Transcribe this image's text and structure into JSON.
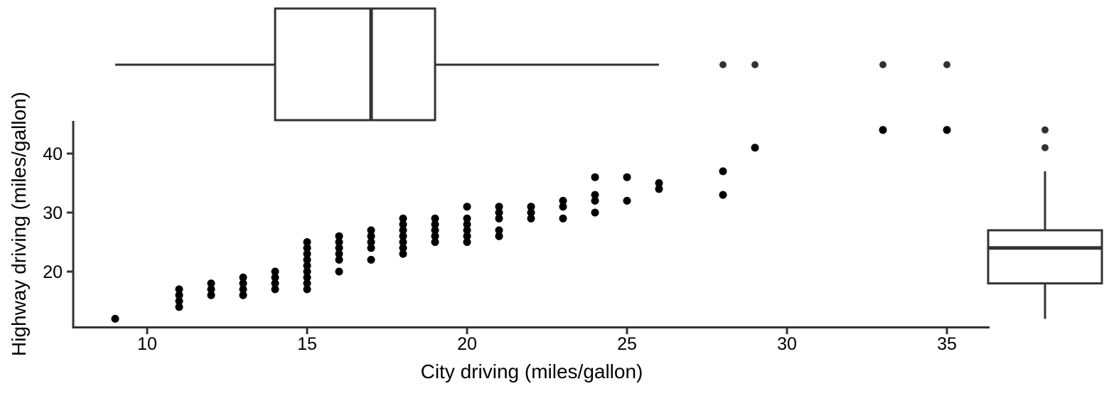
{
  "chart_data": {
    "type": "scatter",
    "title": "",
    "xlabel": "City driving (miles/gallon)",
    "ylabel": "Highway driving (miles/gallon)",
    "x_ticks": [
      10,
      15,
      20,
      25,
      30,
      35
    ],
    "y_ticks": [
      20,
      30,
      40
    ],
    "xlim": [
      7.7,
      36.3
    ],
    "ylim": [
      10.4,
      45.5
    ],
    "grid": false,
    "legend": "none",
    "marker": "filled-black-circle",
    "points": [
      [
        9,
        12
      ],
      [
        11,
        14
      ],
      [
        11,
        15
      ],
      [
        11,
        16
      ],
      [
        11,
        17
      ],
      [
        12,
        16
      ],
      [
        12,
        17
      ],
      [
        12,
        18
      ],
      [
        13,
        16
      ],
      [
        13,
        17
      ],
      [
        13,
        18
      ],
      [
        13,
        19
      ],
      [
        14,
        17
      ],
      [
        14,
        18
      ],
      [
        14,
        19
      ],
      [
        14,
        20
      ],
      [
        15,
        17
      ],
      [
        15,
        18
      ],
      [
        15,
        19
      ],
      [
        15,
        20
      ],
      [
        15,
        21
      ],
      [
        15,
        22
      ],
      [
        15,
        23
      ],
      [
        15,
        24
      ],
      [
        15,
        25
      ],
      [
        16,
        20
      ],
      [
        16,
        22
      ],
      [
        16,
        23
      ],
      [
        16,
        24
      ],
      [
        16,
        25
      ],
      [
        16,
        26
      ],
      [
        17,
        22
      ],
      [
        17,
        24
      ],
      [
        17,
        25
      ],
      [
        17,
        26
      ],
      [
        17,
        27
      ],
      [
        18,
        23
      ],
      [
        18,
        24
      ],
      [
        18,
        25
      ],
      [
        18,
        26
      ],
      [
        18,
        27
      ],
      [
        18,
        28
      ],
      [
        18,
        29
      ],
      [
        19,
        25
      ],
      [
        19,
        26
      ],
      [
        19,
        27
      ],
      [
        19,
        28
      ],
      [
        19,
        29
      ],
      [
        20,
        25
      ],
      [
        20,
        26
      ],
      [
        20,
        27
      ],
      [
        20,
        28
      ],
      [
        20,
        29
      ],
      [
        20,
        31
      ],
      [
        21,
        26
      ],
      [
        21,
        27
      ],
      [
        21,
        29
      ],
      [
        21,
        30
      ],
      [
        21,
        31
      ],
      [
        22,
        29
      ],
      [
        22,
        30
      ],
      [
        22,
        31
      ],
      [
        23,
        29
      ],
      [
        23,
        31
      ],
      [
        23,
        32
      ],
      [
        24,
        30
      ],
      [
        24,
        32
      ],
      [
        24,
        33
      ],
      [
        24,
        36
      ],
      [
        25,
        32
      ],
      [
        25,
        36
      ],
      [
        26,
        34
      ],
      [
        26,
        35
      ],
      [
        28,
        33
      ],
      [
        28,
        37
      ],
      [
        29,
        41
      ],
      [
        33,
        44
      ],
      [
        35,
        44
      ]
    ],
    "marginal_boxplot_x": {
      "variable": "City driving (miles/gallon)",
      "min": 9,
      "q1": 14,
      "median": 17,
      "q3": 19,
      "whisker_high": 26,
      "outliers": [
        28,
        29,
        33,
        35
      ]
    },
    "marginal_boxplot_y": {
      "variable": "Highway driving (miles/gallon)",
      "min": 12,
      "q1": 18,
      "median": 24,
      "q3": 27,
      "whisker_high": 37,
      "outliers": [
        41,
        44
      ]
    }
  },
  "colors": {
    "point": "#000000",
    "outlier_point": "#333333",
    "line": "#333333",
    "box_fill": "#ffffff",
    "background": "#ffffff",
    "text": "#000000"
  }
}
